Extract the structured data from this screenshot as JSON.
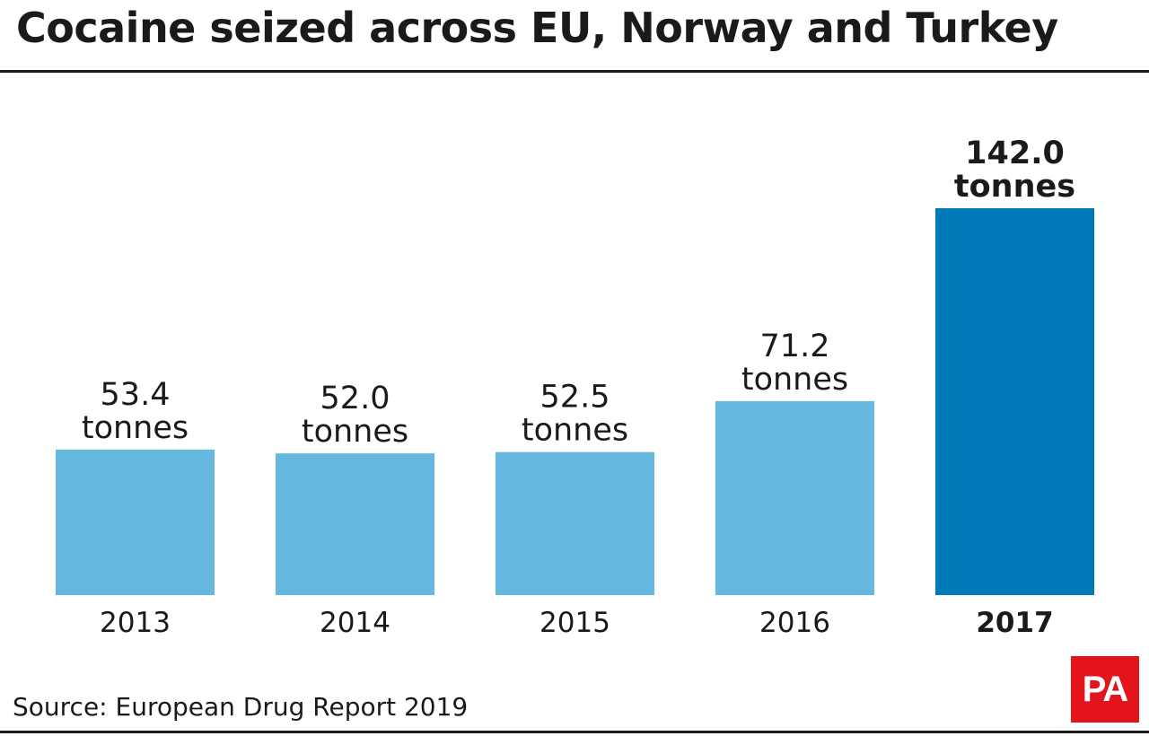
{
  "header": {
    "title": "Cocaine seized across EU, Norway and Turkey"
  },
  "chart_data": {
    "type": "bar",
    "title": "Cocaine seized across EU, Norway and Turkey",
    "xlabel": "",
    "ylabel": "",
    "unit": "tonnes",
    "categories": [
      "2013",
      "2014",
      "2015",
      "2016",
      "2017"
    ],
    "values": [
      53.4,
      52.0,
      52.5,
      71.2,
      142.0
    ],
    "value_labels": [
      "53.4",
      "52.0",
      "52.5",
      "71.2",
      "142.0"
    ],
    "highlight_index": 4,
    "ylim": [
      0,
      142.0
    ],
    "grid": false,
    "legend": "none",
    "colors": {
      "bar": "#67b8e0",
      "highlight": "#0079b8"
    }
  },
  "footer": {
    "source": "Source: European Drug Report 2019",
    "logo_text": "PA",
    "logo_color": "#e3141c"
  }
}
